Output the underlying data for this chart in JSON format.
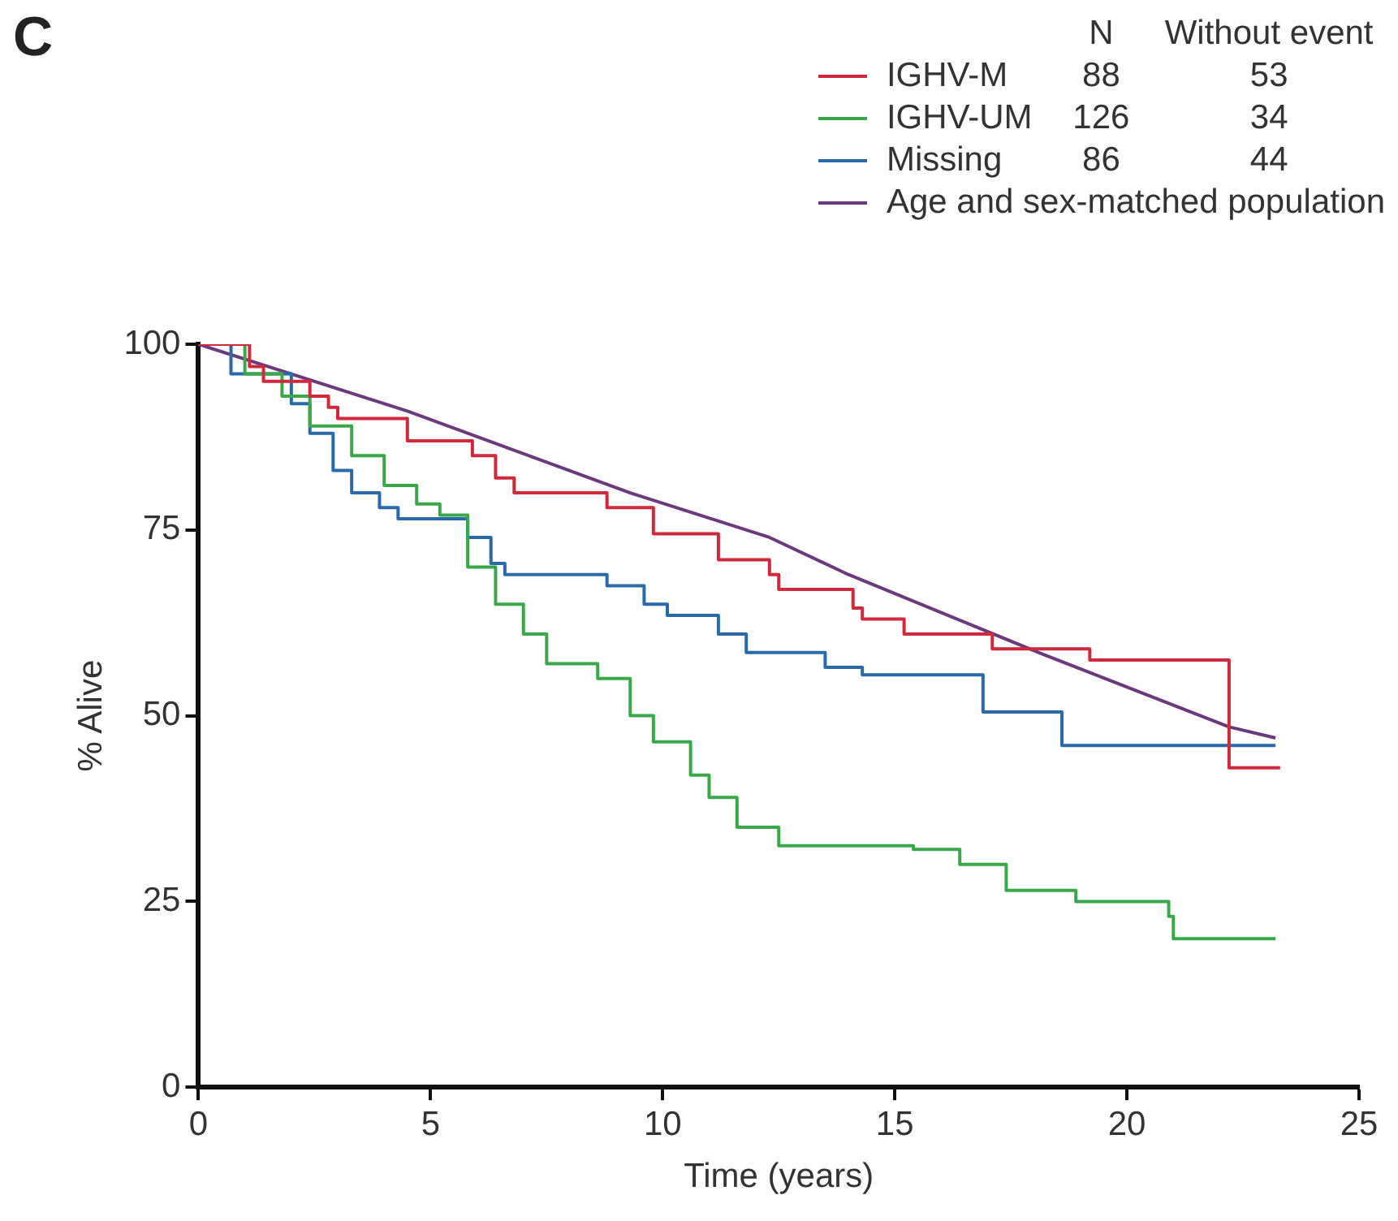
{
  "chart_data": {
    "type": "step",
    "xlabel": "Time (years)",
    "ylabel": "% Alive",
    "annotations": [
      "C",
      "N",
      "Without event",
      "88",
      "53",
      "126",
      "34",
      "86",
      "44"
    ],
    "xlim": [
      0,
      25
    ],
    "xticks": [
      0,
      5,
      10,
      15,
      20,
      25
    ],
    "ylim": [
      0,
      100
    ],
    "yticks": [
      0,
      25,
      50,
      75,
      100
    ],
    "grid": false,
    "legend": "top right",
    "line_style": "solid",
    "series": [
      {
        "name": "IGHV-M",
        "type": "step",
        "color": "#d0283c",
        "x": [
          0,
          1.1,
          1.4,
          2.4,
          2.8,
          3.0,
          4.5,
          5.9,
          6.4,
          6.8,
          8.8,
          9.8,
          11.2,
          12.3,
          12.5,
          14.1,
          14.3,
          15.2,
          17.1,
          19.2,
          22.2,
          23.3
        ],
        "values": [
          100,
          97,
          95,
          93,
          91.5,
          90,
          87,
          85,
          82,
          80,
          78,
          74.5,
          71,
          69,
          67,
          64.5,
          63,
          61,
          59,
          57.5,
          43,
          43
        ]
      },
      {
        "name": "IGHV-UM",
        "type": "step",
        "color": "#3aa84a",
        "x": [
          0,
          1.0,
          1.8,
          2.4,
          3.3,
          4.0,
          4.7,
          5.2,
          5.8,
          6.4,
          7.0,
          7.5,
          8.6,
          9.3,
          9.8,
          10.6,
          11.0,
          11.6,
          12.5,
          15.4,
          16.4,
          17.4,
          18.9,
          20.9,
          21.0,
          23.2
        ],
        "values": [
          100,
          96,
          93,
          89,
          85,
          81,
          78.5,
          77,
          70,
          65,
          61,
          57,
          55,
          50,
          46.5,
          42,
          39,
          35,
          32.5,
          32,
          30,
          26.5,
          25,
          23,
          20,
          20
        ]
      },
      {
        "name": "Missing",
        "type": "step",
        "color": "#2a6aa8",
        "x": [
          0,
          0.7,
          2.0,
          2.4,
          2.9,
          3.3,
          3.9,
          4.3,
          5.8,
          6.3,
          6.6,
          8.8,
          9.6,
          10.1,
          11.2,
          11.8,
          13.5,
          14.3,
          16.9,
          18.6,
          23.2
        ],
        "values": [
          100,
          96,
          92,
          88,
          83,
          80,
          78,
          76.5,
          74,
          70.5,
          69,
          67.5,
          65,
          63.5,
          61,
          58.5,
          56.5,
          55.5,
          50.5,
          46,
          46
        ]
      },
      {
        "name": "Age and sex-matched population",
        "type": "line",
        "color": "#6a3a7a",
        "x": [
          0,
          4.5,
          9.3,
          12.3,
          14,
          18.1,
          22.2,
          23.2
        ],
        "values": [
          100,
          91,
          80,
          74,
          69,
          58.5,
          48.5,
          47
        ]
      }
    ]
  }
}
